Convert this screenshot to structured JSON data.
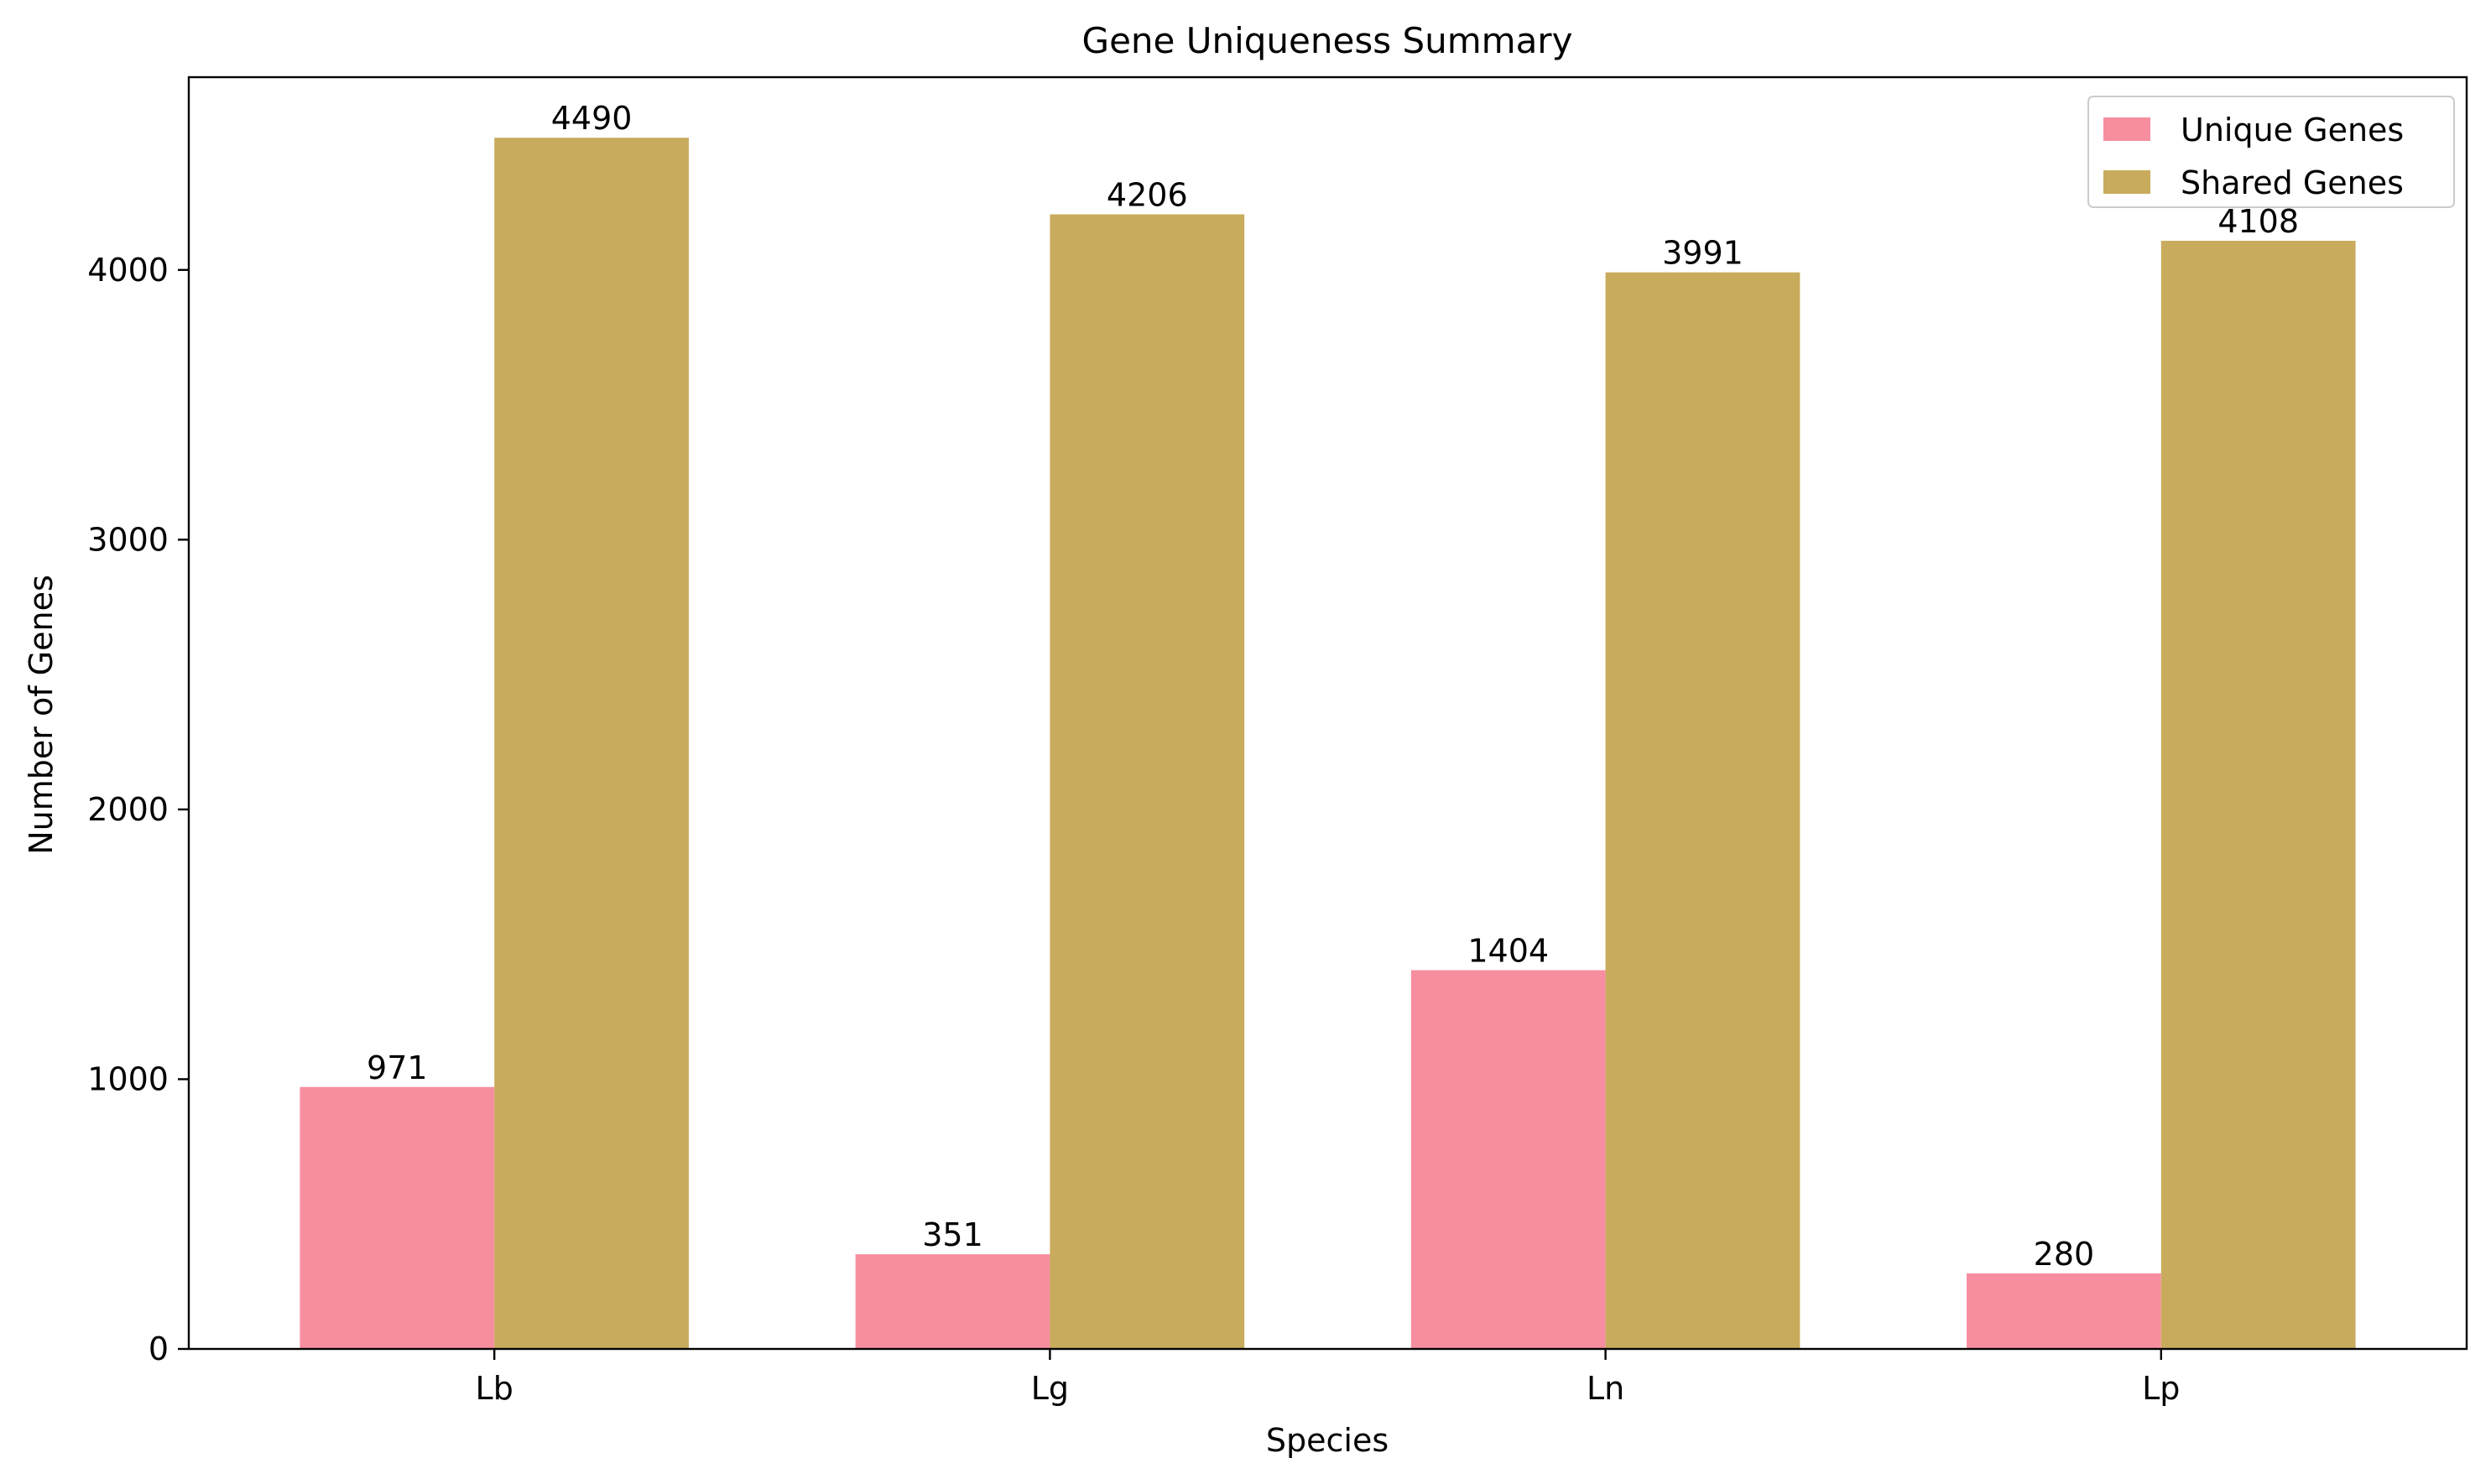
{
  "chart_data": {
    "type": "bar",
    "title": "Gene Uniqueness Summary",
    "xlabel": "Species",
    "ylabel": "Number of Genes",
    "categories": [
      "Lb",
      "Lg",
      "Ln",
      "Lp"
    ],
    "series": [
      {
        "name": "Unique Genes",
        "values": [
          971,
          351,
          1404,
          280
        ],
        "color": "#f78ea0"
      },
      {
        "name": "Shared Genes",
        "values": [
          4490,
          4206,
          3991,
          4108
        ],
        "color": "#c8ab5c"
      }
    ],
    "yticks": [
      0,
      1000,
      2000,
      3000,
      4000
    ],
    "ylim": [
      0,
      4714.5
    ],
    "grid": false,
    "legend_position": "top-right"
  }
}
